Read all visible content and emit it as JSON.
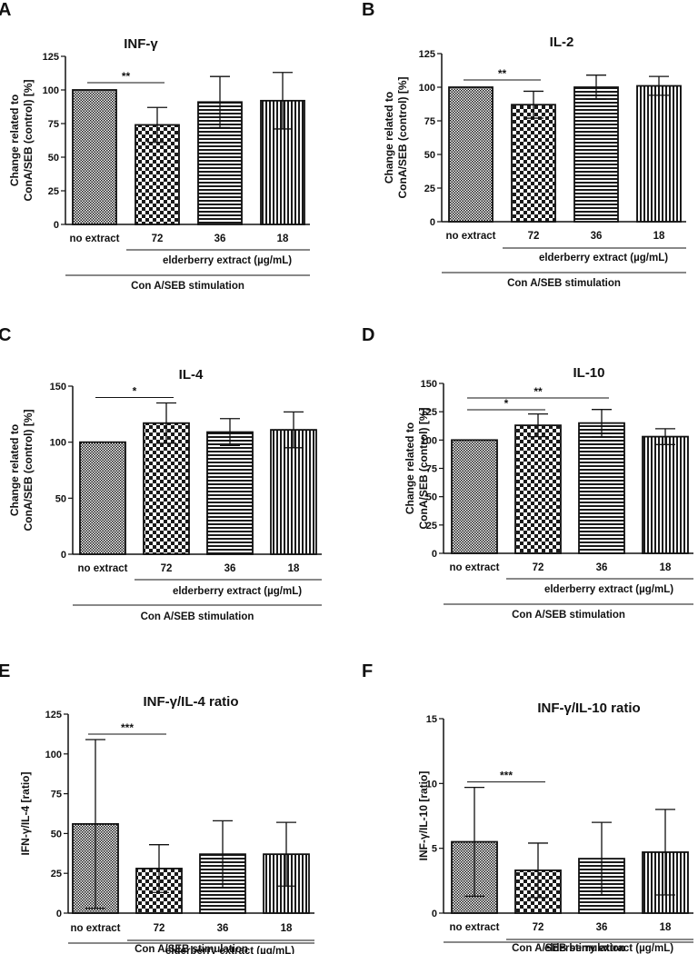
{
  "figure": {
    "colors": {
      "ink": "#111111",
      "background": "#ffffff"
    },
    "patterns": [
      "crosshatch-fine",
      "checkerboard",
      "horizontal-stripes",
      "vertical-stripes"
    ]
  },
  "chart_data": [
    {
      "panel": "A",
      "type": "bar",
      "title": "INF-γ",
      "ylabel": [
        "Change related to",
        "ConA/SEB (control) [%]"
      ],
      "ylim": [
        0,
        125
      ],
      "yticks": [
        0,
        25,
        50,
        75,
        100,
        125
      ],
      "categories": [
        "no extract",
        "72",
        "36",
        "18"
      ],
      "values": [
        100,
        74,
        91,
        92
      ],
      "errors": [
        0,
        13,
        19,
        21
      ],
      "group_label": "elderberry extract (µg/mL)",
      "stimulation_label": "Con A/SEB stimulation",
      "significance": [
        {
          "from": 0,
          "to": 1,
          "label": "**"
        }
      ]
    },
    {
      "panel": "B",
      "type": "bar",
      "title": "IL-2",
      "ylabel": [
        "Change related to",
        "ConA/SEB (control) [%]"
      ],
      "ylim": [
        0,
        125
      ],
      "yticks": [
        0,
        25,
        50,
        75,
        100,
        125
      ],
      "categories": [
        "no extract",
        "72",
        "36",
        "18"
      ],
      "values": [
        100,
        87,
        100,
        101
      ],
      "errors": [
        0,
        10,
        9,
        7
      ],
      "group_label": "elderberry extract (µg/mL)",
      "stimulation_label": "Con A/SEB stimulation",
      "significance": [
        {
          "from": 0,
          "to": 1,
          "label": "**"
        }
      ]
    },
    {
      "panel": "C",
      "type": "bar",
      "title": "IL-4",
      "ylabel": [
        "Change related to",
        "ConA/SEB (control) [%]"
      ],
      "ylim": [
        0,
        150
      ],
      "yticks": [
        0,
        50,
        100,
        150
      ],
      "categories": [
        "no extract",
        "72",
        "36",
        "18"
      ],
      "values": [
        100,
        117,
        109,
        111
      ],
      "errors": [
        0,
        18,
        12,
        16
      ],
      "group_label": "elderberry extract (µg/mL)",
      "stimulation_label": "Con A/SEB stimulation",
      "significance": [
        {
          "from": 0,
          "to": 1,
          "label": "*"
        }
      ]
    },
    {
      "panel": "D",
      "type": "bar",
      "title": "IL-10",
      "ylabel": [
        "Change related to",
        "ConA/SEB (control) [%]"
      ],
      "ylim": [
        0,
        150
      ],
      "yticks": [
        0,
        25,
        50,
        75,
        100,
        125,
        150
      ],
      "categories": [
        "no extract",
        "72",
        "36",
        "18"
      ],
      "values": [
        100,
        113,
        115,
        103
      ],
      "errors": [
        0,
        10,
        12,
        7
      ],
      "group_label": "elderberry extract (µg/mL)",
      "stimulation_label": "Con A/SEB stimulation",
      "significance": [
        {
          "from": 0,
          "to": 1,
          "label": "*"
        },
        {
          "from": 0,
          "to": 2,
          "label": "**"
        }
      ]
    },
    {
      "panel": "E",
      "type": "bar",
      "title": "INF-γ/IL-4 ratio",
      "ylabel": [
        "IFN-γ/IL-4 [ratio]"
      ],
      "ylim": [
        0,
        125
      ],
      "yticks": [
        0,
        25,
        50,
        75,
        100,
        125
      ],
      "categories": [
        "no extract",
        "72",
        "36",
        "18"
      ],
      "values": [
        56,
        28,
        37,
        37
      ],
      "errors": [
        53,
        15,
        21,
        20
      ],
      "group_label": "elderberry extract (µg/mL)",
      "stimulation_label": "Con A/SEB stimulation",
      "significance": [
        {
          "from": 0,
          "to": 1,
          "label": "***"
        }
      ]
    },
    {
      "panel": "F",
      "type": "bar",
      "title": "INF-γ/IL-10 ratio",
      "ylabel": [
        "INF-γ/IL-10 [ratio]"
      ],
      "ylim": [
        0,
        15
      ],
      "yticks": [
        0,
        5,
        10,
        15
      ],
      "categories": [
        "no extract",
        "72",
        "36",
        "18"
      ],
      "values": [
        5.5,
        3.3,
        4.2,
        4.7
      ],
      "errors": [
        4.2,
        2.1,
        2.8,
        3.3
      ],
      "group_label": "elderberry extract (µg/mL)",
      "stimulation_label": "Con A/SEB stimulation",
      "significance": [
        {
          "from": 0,
          "to": 1,
          "label": "***"
        }
      ]
    }
  ]
}
